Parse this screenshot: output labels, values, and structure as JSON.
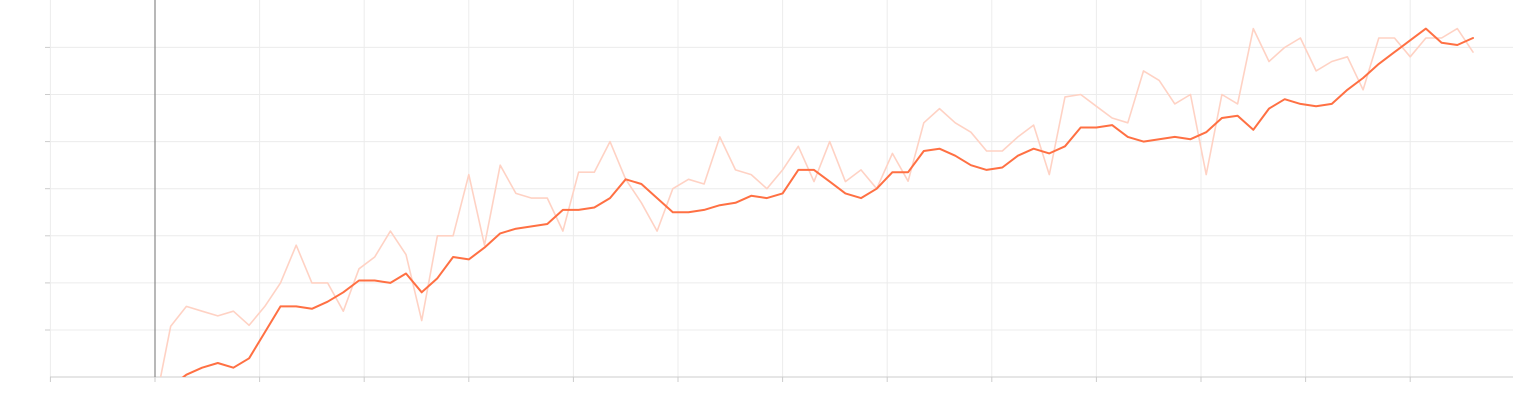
{
  "chart_data": {
    "type": "line",
    "xlim": [
      -100,
      1300
    ],
    "ylim": [
      -0.15,
      0.65
    ],
    "x_tick_step": 100,
    "y_tick_step": 0.1,
    "grid": true,
    "colors": {
      "smoothed": "#ff7043",
      "raw": "#ffd2c4",
      "grid": "#ececec",
      "axis": "#888888",
      "tick": "#cccccc"
    },
    "series": [
      {
        "x": [
          0,
          15,
          30,
          45,
          60,
          75,
          90,
          105,
          120,
          135,
          150,
          165,
          180,
          195,
          210,
          225,
          240,
          255,
          270,
          285,
          300,
          315,
          330,
          345,
          360,
          375,
          390,
          405,
          420,
          435,
          450,
          465,
          480,
          495,
          510,
          525,
          540,
          555,
          570,
          585,
          600,
          615,
          630,
          645,
          660,
          675,
          690,
          705,
          720,
          735,
          750,
          765,
          780,
          795,
          810,
          825,
          840,
          855,
          870,
          885,
          900,
          915,
          930,
          945,
          960,
          975,
          990,
          1005,
          1020,
          1035,
          1050,
          1065,
          1080,
          1095,
          1110,
          1125,
          1140,
          1155,
          1170,
          1185,
          1200,
          1215,
          1230,
          1245,
          1260
        ],
        "values": [
          -0.16,
          0.008,
          0.05,
          0.04,
          0.03,
          0.04,
          0.01,
          0.05,
          0.1,
          0.18,
          0.1,
          0.1,
          0.04,
          0.13,
          0.155,
          0.21,
          0.16,
          0.02,
          0.2,
          0.2,
          0.33,
          0.18,
          0.35,
          0.29,
          0.28,
          0.28,
          0.21,
          0.335,
          0.335,
          0.4,
          0.32,
          0.27,
          0.21,
          0.3,
          0.32,
          0.31,
          0.41,
          0.34,
          0.33,
          0.3,
          0.34,
          0.39,
          0.315,
          0.4,
          0.315,
          0.34,
          0.3,
          0.375,
          0.316,
          0.44,
          0.47,
          0.44,
          0.42,
          0.38,
          0.38,
          0.41,
          0.435,
          0.33,
          0.495,
          0.5,
          0.475,
          0.45,
          0.44,
          0.55,
          0.53,
          0.48,
          0.5,
          0.33,
          0.5,
          0.48,
          0.64,
          0.57,
          0.6,
          0.62,
          0.55,
          0.57,
          0.58,
          0.51,
          0.62,
          0.62,
          0.58,
          0.62,
          0.62,
          0.64,
          0.59
        ]
      },
      {
        "x": [
          0,
          15,
          30,
          45,
          60,
          75,
          90,
          105,
          120,
          135,
          150,
          165,
          180,
          195,
          210,
          225,
          240,
          255,
          270,
          285,
          300,
          315,
          330,
          345,
          360,
          375,
          390,
          405,
          420,
          435,
          450,
          465,
          480,
          495,
          510,
          525,
          540,
          555,
          570,
          585,
          600,
          615,
          630,
          645,
          660,
          675,
          690,
          705,
          720,
          735,
          750,
          765,
          780,
          795,
          810,
          825,
          840,
          855,
          870,
          885,
          900,
          915,
          930,
          945,
          960,
          975,
          990,
          1005,
          1020,
          1035,
          1050,
          1065,
          1080,
          1095,
          1110,
          1125,
          1140,
          1155,
          1170,
          1185,
          1200,
          1215,
          1230,
          1245,
          1260
        ],
        "values": [
          -0.16,
          -0.12,
          -0.095,
          -0.08,
          -0.07,
          -0.08,
          -0.06,
          -0.005,
          0.05,
          0.05,
          0.045,
          0.06,
          0.08,
          0.105,
          0.105,
          0.1,
          0.12,
          0.08,
          0.11,
          0.155,
          0.15,
          0.175,
          0.205,
          0.215,
          0.22,
          0.225,
          0.255,
          0.255,
          0.26,
          0.28,
          0.32,
          0.31,
          0.28,
          0.25,
          0.25,
          0.255,
          0.265,
          0.27,
          0.285,
          0.28,
          0.29,
          0.34,
          0.34,
          0.315,
          0.29,
          0.28,
          0.3,
          0.335,
          0.335,
          0.38,
          0.385,
          0.37,
          0.35,
          0.34,
          0.345,
          0.37,
          0.385,
          0.375,
          0.39,
          0.43,
          0.43,
          0.435,
          0.41,
          0.4,
          0.405,
          0.41,
          0.405,
          0.42,
          0.45,
          0.455,
          0.425,
          0.47,
          0.49,
          0.48,
          0.475,
          0.48,
          0.51,
          0.535,
          0.565,
          0.59,
          0.615,
          0.64,
          0.61,
          0.605,
          0.62
        ]
      }
    ]
  }
}
